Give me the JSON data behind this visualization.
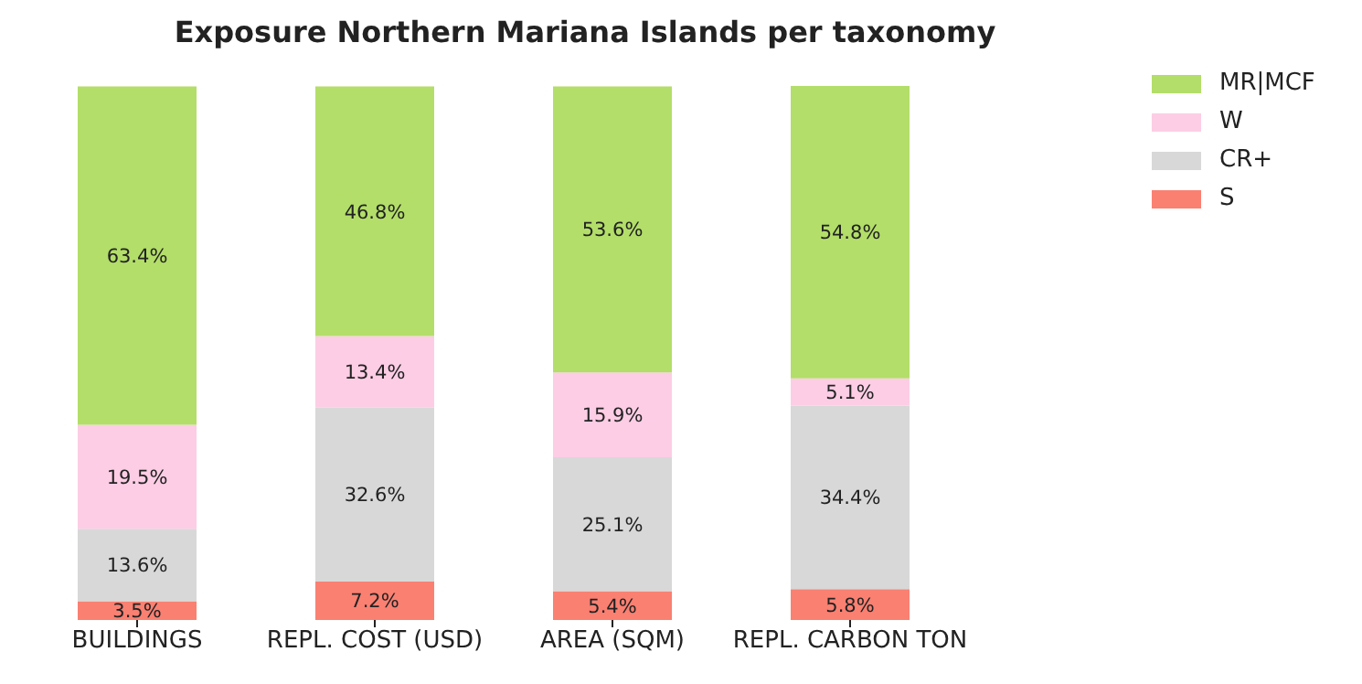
{
  "chart_data": {
    "type": "bar",
    "title": "Exposure Northern Mariana Islands per taxonomy",
    "categories": [
      "BUILDINGS",
      "REPL. COST (USD)",
      "AREA (SQM)",
      "REPL. CARBON TON"
    ],
    "stacked": true,
    "tick_labels": "x",
    "legend": "top right",
    "series": [
      {
        "name": "S",
        "color": "#fa8072",
        "values": [
          3.5,
          7.2,
          5.4,
          5.8
        ],
        "value_labels": [
          "3.5%",
          "7.2%",
          "5.4%",
          "5.8%"
        ]
      },
      {
        "name": "CR+",
        "color": "#d8d8d8",
        "values": [
          13.6,
          32.6,
          25.1,
          34.4
        ],
        "value_labels": [
          "13.6%",
          "32.6%",
          "25.1%",
          "34.4%"
        ]
      },
      {
        "name": "W",
        "color": "#fccde5",
        "values": [
          19.5,
          13.4,
          15.9,
          5.1
        ],
        "value_labels": [
          "19.5%",
          "13.4%",
          "15.9%",
          "5.1%"
        ]
      },
      {
        "name": "MR|MCF",
        "color": "#b3de69",
        "values": [
          63.4,
          46.8,
          53.6,
          54.8
        ],
        "value_labels": [
          "63.4%",
          "46.8%",
          "53.6%",
          "54.8%"
        ]
      }
    ]
  }
}
